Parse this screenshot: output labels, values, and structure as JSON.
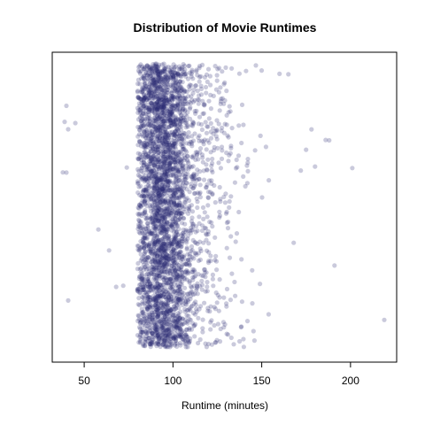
{
  "chart_data": {
    "type": "scatter",
    "title": "Distribution of Movie Runtimes",
    "xlabel": "Runtime (minutes)",
    "ylabel": "",
    "xlim": [
      32,
      226
    ],
    "ylim": [
      0,
      1
    ],
    "x_ticks": [
      50,
      100,
      150,
      200
    ],
    "x_tick_labels": [
      "50",
      "100",
      "150",
      "200"
    ],
    "y_axis_shown": false,
    "grid": false,
    "legend": "none",
    "point_color": "#2b2b73",
    "point_opacity": 0.25,
    "jitter": "vertical",
    "distribution": {
      "n_core_points": 3600,
      "core_min": 80,
      "core_peak_low": 86,
      "core_peak_high": 100,
      "core_tail_max": 165,
      "outliers_x": [
        38,
        39,
        40,
        40,
        41,
        41,
        45,
        58,
        64,
        68,
        72,
        74,
        160,
        165,
        168,
        172,
        175,
        178,
        180,
        186,
        188,
        191,
        201,
        219
      ]
    }
  }
}
